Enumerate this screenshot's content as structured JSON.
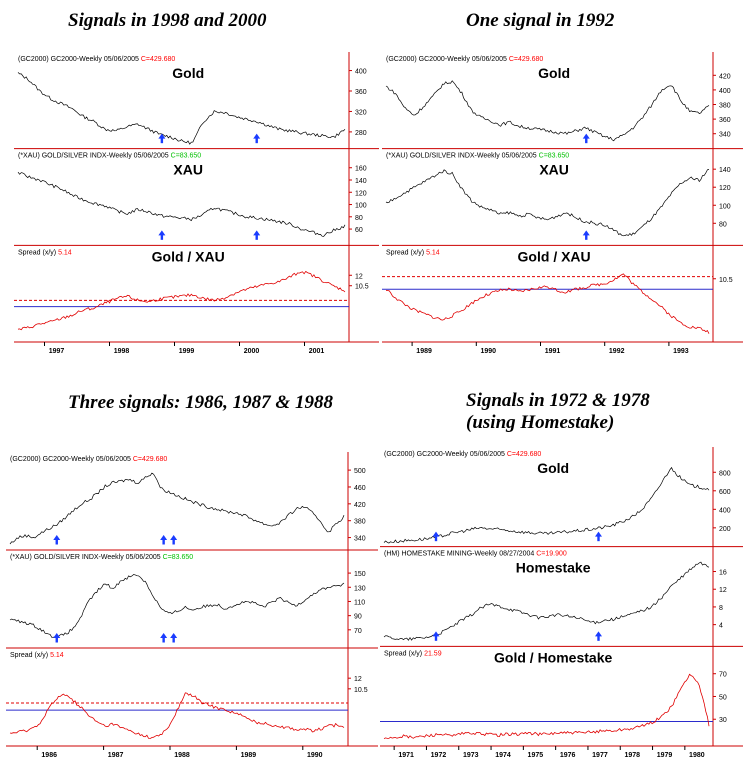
{
  "titles": {
    "tl": "Signals in 1998 and 2000",
    "tr": "One signal in 1992",
    "bl": "Three signals: 1986, 1987 & 1988",
    "br1": "Signals in 1972 & 1978",
    "br2": "(using Homestake)"
  },
  "colors": {
    "price": "#000000",
    "spread": "#e00000",
    "mean_line": "#2b2bcc",
    "threshold_line": "#e00000",
    "arrow": "#1a3cff",
    "header_value_red": "#ff0000",
    "header_value_green": "#00c000",
    "axis": "#cc0000"
  },
  "chart_data": [
    {
      "id": "tl",
      "type": "line",
      "panels": [
        {
          "header": "(GC2000) GC2000-Weekly  05/06/2005",
          "value": "C=429.680",
          "value_color": "red",
          "label": "Gold",
          "y_ticks": [
            "400",
            "360",
            "320",
            "280"
          ],
          "ylim": [
            255,
            405
          ],
          "values": [
            395,
            382,
            360,
            345,
            335,
            325,
            310,
            300,
            285,
            282,
            290,
            295,
            285,
            275,
            270,
            262,
            258,
            300,
            320,
            318,
            310,
            305,
            300,
            292,
            285,
            282,
            278,
            275,
            272,
            270,
            285
          ],
          "arrows_x": [
            0.44,
            0.73
          ]
        },
        {
          "header": "(*XAU) GOLD/SILVER INDX-Weekly  05/06/2005",
          "value": "C=83.650",
          "value_color": "green",
          "label": "XAU",
          "y_ticks": [
            "160",
            "140",
            "120",
            "100",
            "80",
            "60"
          ],
          "ylim": [
            40,
            165
          ],
          "values": [
            152,
            145,
            140,
            132,
            125,
            115,
            108,
            102,
            98,
            90,
            85,
            92,
            88,
            82,
            80,
            78,
            76,
            84,
            95,
            90,
            85,
            80,
            78,
            75,
            72,
            68,
            60,
            55,
            50,
            58,
            65
          ],
          "arrows_x": [
            0.44,
            0.73
          ]
        },
        {
          "header": "Spread (x/y)",
          "value": "5.14",
          "value_color": "red",
          "label": "Gold / XAU",
          "y_ticks": [
            "12",
            "10.5"
          ],
          "ylim": [
            3,
            14
          ],
          "values": [
            4.2,
            4.5,
            5.0,
            5.3,
            5.8,
            6.3,
            7.0,
            7.3,
            8.0,
            8.6,
            9.0,
            8.4,
            8.2,
            8.6,
            8.8,
            9.0,
            9.2,
            8.7,
            8.4,
            8.8,
            9.5,
            10.0,
            10.4,
            10.8,
            11.1,
            11.8,
            12.6,
            12.0,
            11.2,
            10.4,
            9.8
          ],
          "mean": 7.5,
          "threshold": 8.4
        }
      ],
      "x_ticks": [
        "1997",
        "1998",
        "1999",
        "2000",
        "2001"
      ]
    },
    {
      "id": "tr",
      "type": "line",
      "panels": [
        {
          "header": "(GC2000) GC2000-Weekly  05/06/2005",
          "value": "C=429.680",
          "value_color": "red",
          "label": "Gold",
          "y_ticks": [
            "420",
            "400",
            "380",
            "360",
            "340"
          ],
          "ylim": [
            325,
            430
          ],
          "values": [
            405,
            395,
            375,
            365,
            378,
            392,
            408,
            412,
            395,
            372,
            362,
            358,
            352,
            356,
            350,
            348,
            346,
            344,
            342,
            340,
            344,
            348,
            342,
            336,
            332,
            338,
            348,
            362,
            380,
            400,
            408,
            386,
            370,
            368,
            378
          ],
          "arrows_x": [
            0.62
          ]
        },
        {
          "header": "(*XAU) GOLD/SILVER INDX-Weekly  05/06/2005",
          "value": "C=83.650",
          "value_color": "green",
          "label": "XAU",
          "y_ticks": [
            "140",
            "120",
            "100",
            "80"
          ],
          "ylim": [
            60,
            145
          ],
          "values": [
            102,
            108,
            114,
            120,
            126,
            132,
            138,
            135,
            118,
            105,
            98,
            95,
            90,
            92,
            88,
            90,
            86,
            84,
            88,
            92,
            86,
            82,
            80,
            78,
            72,
            66,
            68,
            76,
            86,
            98,
            112,
            124,
            130,
            128,
            140
          ],
          "arrows_x": [
            0.62
          ]
        },
        {
          "header": "Spread (x/y)",
          "value": "5.14",
          "value_color": "red",
          "label": "Gold / XAU",
          "y_ticks": [
            "10.5"
          ],
          "ylim": [
            2,
            13
          ],
          "values": [
            9.0,
            7.8,
            6.8,
            6.0,
            5.5,
            5.0,
            4.6,
            5.2,
            6.0,
            7.0,
            7.8,
            8.4,
            8.8,
            9.0,
            8.6,
            8.9,
            9.2,
            9.4,
            8.8,
            8.6,
            9.0,
            9.3,
            9.6,
            9.8,
            10.4,
            11.2,
            9.8,
            8.6,
            7.6,
            6.4,
            5.2,
            4.2,
            3.6,
            3.4,
            2.8
          ],
          "mean": 9.0,
          "threshold": 10.8
        }
      ],
      "x_ticks": [
        "1989",
        "1990",
        "1991",
        "1992",
        "1993"
      ]
    },
    {
      "id": "bl",
      "type": "line",
      "panels": [
        {
          "header": "(GC2000) GC2000-Weekly  05/06/2005",
          "value": "C=429.680",
          "value_color": "red",
          "label": "",
          "y_ticks": [
            "500",
            "460",
            "420",
            "380",
            "340"
          ],
          "ylim": [
            320,
            505
          ],
          "values": [
            325,
            340,
            345,
            340,
            352,
            362,
            372,
            388,
            405,
            420,
            430,
            445,
            462,
            470,
            474,
            478,
            470,
            482,
            495,
            456,
            448,
            440,
            432,
            424,
            418,
            412,
            408,
            402,
            400,
            396,
            388,
            380,
            372,
            368,
            376,
            392,
            408,
            414,
            398,
            380,
            352,
            372,
            390
          ],
          "arrows_x": [
            0.14,
            0.46,
            0.49
          ]
        },
        {
          "header": "(*XAU) GOLD/SILVER INDX-Weekly  05/06/2005",
          "value": "C=83.650",
          "value_color": "green",
          "label": "",
          "y_ticks": [
            "150",
            "130",
            "110",
            "90",
            "70"
          ],
          "ylim": [
            50,
            160
          ],
          "values": [
            85,
            82,
            80,
            76,
            70,
            62,
            60,
            64,
            72,
            90,
            112,
            125,
            135,
            128,
            140,
            145,
            148,
            138,
            118,
            100,
            92,
            96,
            102,
            98,
            102,
            104,
            106,
            100,
            104,
            108,
            110,
            106,
            102,
            110,
            114,
            108,
            104,
            112,
            120,
            126,
            130,
            132,
            134
          ],
          "arrows_x": [
            0.14,
            0.46,
            0.49
          ]
        },
        {
          "header": "Spread (x/y)",
          "value": "5.14",
          "value_color": "red",
          "label": "",
          "y_ticks": [
            "12",
            "10.5"
          ],
          "ylim": [
            3,
            14
          ],
          "values": [
            4.2,
            4.4,
            4.6,
            5.0,
            6.0,
            8.0,
            9.2,
            9.8,
            8.8,
            7.8,
            6.6,
            5.8,
            5.2,
            5.6,
            5.0,
            4.6,
            4.2,
            3.8,
            3.6,
            4.0,
            5.2,
            7.4,
            9.8,
            9.6,
            8.6,
            8.2,
            7.8,
            7.6,
            7.2,
            6.8,
            6.2,
            5.8,
            5.6,
            5.4,
            5.2,
            5.0,
            4.8,
            4.8,
            4.6,
            4.8,
            5.2,
            5.4,
            5.2
          ],
          "mean": 7.5,
          "threshold": 8.5
        }
      ],
      "x_ticks": [
        "1986",
        "1987",
        "1988",
        "1989",
        "1990"
      ]
    },
    {
      "id": "br",
      "type": "line",
      "panels": [
        {
          "header": "(GC2000) GC2000-Weekly  05/06/2005",
          "value": "C=429.680",
          "value_color": "red",
          "label": "Gold",
          "y_ticks": [
            "800",
            "600",
            "400",
            "200"
          ],
          "ylim": [
            40,
            900
          ],
          "values": [
            46,
            52,
            60,
            68,
            78,
            90,
            110,
            140,
            160,
            180,
            200,
            190,
            182,
            172,
            160,
            150,
            142,
            136,
            146,
            156,
            166,
            176,
            190,
            206,
            230,
            270,
            320,
            400,
            520,
            680,
            850,
            740,
            660,
            640,
            620
          ],
          "arrows_x": [
            0.16,
            0.66
          ]
        },
        {
          "header": "(HM) HOMESTAKE MINING-Weekly  08/27/2004",
          "value": "C=19.900",
          "value_color": "red",
          "label": "Homestake",
          "y_ticks": [
            "16",
            "12",
            "8",
            "4"
          ],
          "ylim": [
            0,
            18
          ],
          "values": [
            1.2,
            1.0,
            0.6,
            0.8,
            1.0,
            1.4,
            2.2,
            3.4,
            4.8,
            6.0,
            7.6,
            8.6,
            8.2,
            7.6,
            7.0,
            6.4,
            5.6,
            5.8,
            6.2,
            6.0,
            5.6,
            5.0,
            4.4,
            5.0,
            5.2,
            5.8,
            6.4,
            7.2,
            8.0,
            10.0,
            12.6,
            14.4,
            16.4,
            18.0,
            17.0
          ],
          "arrows_x": [
            0.16,
            0.66
          ]
        },
        {
          "header": "Spread (x/y)",
          "value": "21.59",
          "value_color": "red",
          "label": "Gold / Homestake",
          "y_ticks": [
            "70",
            "50",
            "30"
          ],
          "ylim": [
            10,
            80
          ],
          "values": [
            14,
            14,
            15,
            14,
            15,
            16,
            17,
            15,
            17,
            18,
            17,
            17,
            16,
            17,
            17,
            18,
            17,
            17,
            18,
            18,
            18,
            18,
            19,
            20,
            20,
            21,
            22,
            24,
            27,
            32,
            40,
            56,
            70,
            60,
            25
          ],
          "mean": 28,
          "threshold": null
        }
      ],
      "x_ticks": [
        "1971",
        "1972",
        "1973",
        "1974",
        "1975",
        "1976",
        "1977",
        "1978",
        "1979",
        "1980"
      ]
    }
  ]
}
